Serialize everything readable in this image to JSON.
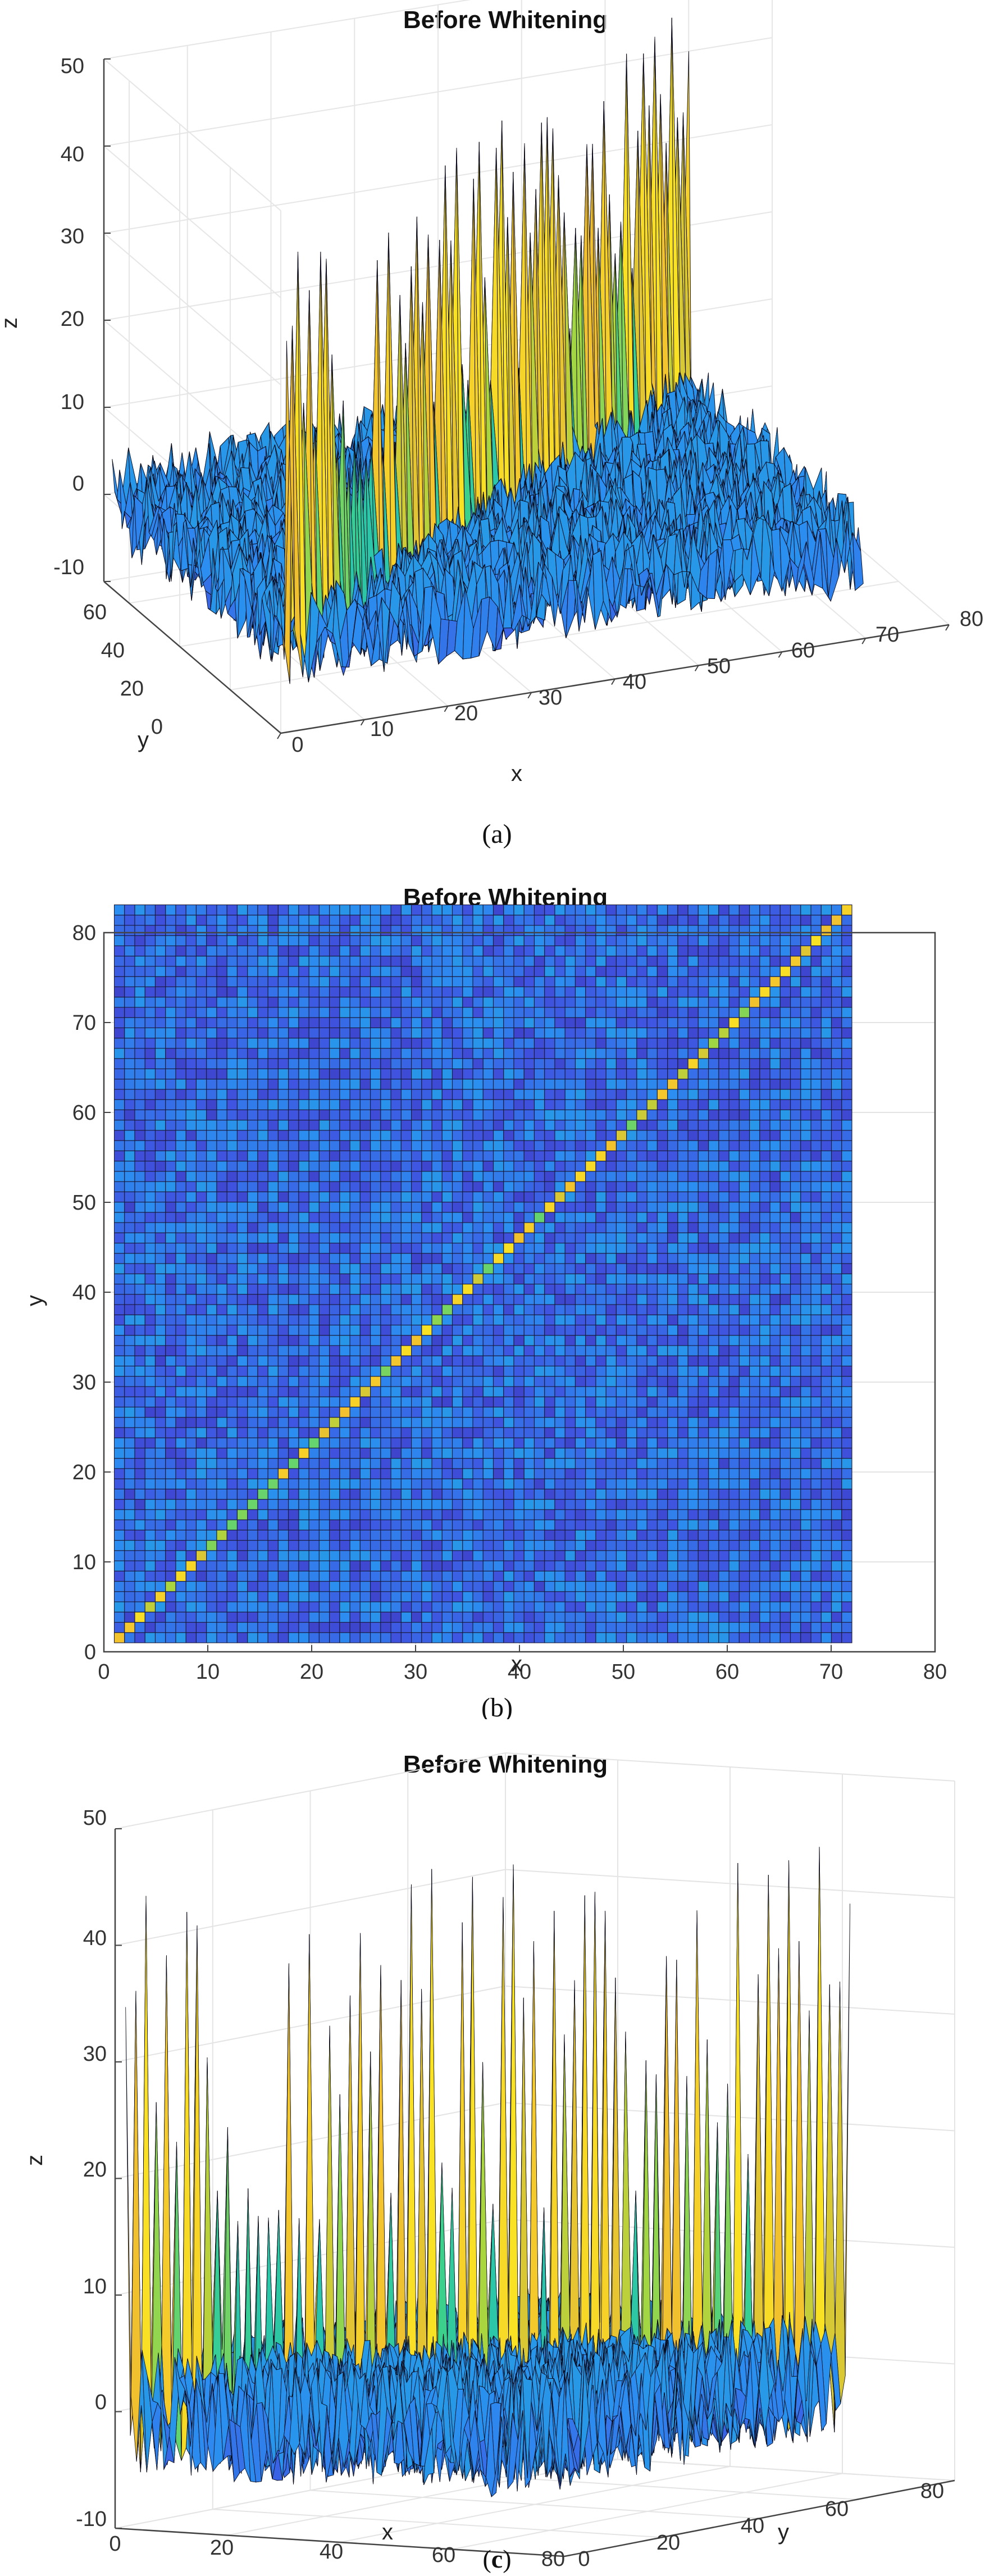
{
  "figures": [
    {
      "title": "Before Whitening",
      "caption_pre": "(",
      "caption_letter": "a",
      "caption_post": ")",
      "xlabel": "x",
      "ylabel": "y",
      "zlabel": "z",
      "x_ticks": [
        "0",
        "10",
        "20",
        "30",
        "40",
        "50",
        "60",
        "70",
        "80"
      ],
      "y_ticks": [
        "0",
        "20",
        "40",
        "60"
      ],
      "z_ticks": [
        "-10",
        "0",
        "10",
        "20",
        "30",
        "40",
        "50"
      ]
    },
    {
      "title": "Before Whitening",
      "caption_pre": "(",
      "caption_letter": "b",
      "caption_post": ")",
      "xlabel": "x",
      "ylabel": "y",
      "x_ticks": [
        "0",
        "10",
        "20",
        "30",
        "40",
        "50",
        "60",
        "70",
        "80"
      ],
      "y_ticks": [
        "0",
        "10",
        "20",
        "30",
        "40",
        "50",
        "60",
        "70",
        "80"
      ]
    },
    {
      "title": "Before Whitening",
      "caption_pre": "(",
      "caption_letter": "c",
      "caption_post": ")",
      "xlabel": "x",
      "ylabel": "y",
      "zlabel": "z",
      "x_ticks": [
        "0",
        "20",
        "40",
        "60",
        "80"
      ],
      "y_ticks": [
        "0",
        "20",
        "40",
        "60",
        "80"
      ],
      "z_ticks": [
        "-10",
        "0",
        "10",
        "20",
        "30",
        "40",
        "50"
      ]
    }
  ],
  "chart_data": [
    {
      "type": "surface",
      "title": "Before Whitening",
      "xlabel": "x",
      "ylabel": "y",
      "zlabel": "z",
      "xlim": [
        0,
        80
      ],
      "ylim": [
        0,
        70
      ],
      "zlim": [
        -10,
        50
      ],
      "grid_size": 72,
      "diagonal_peak_range": [
        15,
        45
      ],
      "off_diagonal_range": [
        -7,
        7
      ],
      "colormap": [
        "#3a1f9e",
        "#3f54e0",
        "#2b8ef0",
        "#1bb9c8",
        "#3bd18c",
        "#a7d63f",
        "#f2c02f",
        "#f9e124"
      ],
      "grid": true
    },
    {
      "type": "heatmap",
      "title": "Before Whitening",
      "xlabel": "x",
      "ylabel": "y",
      "xlim": [
        0,
        80
      ],
      "ylim": [
        0,
        80
      ],
      "grid_size": 72,
      "diagonal": "high (yellow/green)",
      "off_diagonal": "low (blue)",
      "grid": true
    },
    {
      "type": "surface",
      "title": "Before Whitening",
      "xlabel": "x",
      "ylabel": "y",
      "zlabel": "z",
      "xlim": [
        0,
        80
      ],
      "ylim": [
        0,
        80
      ],
      "zlim": [
        -10,
        50
      ],
      "grid_size": 72,
      "view": "side view along x",
      "grid": true
    }
  ]
}
